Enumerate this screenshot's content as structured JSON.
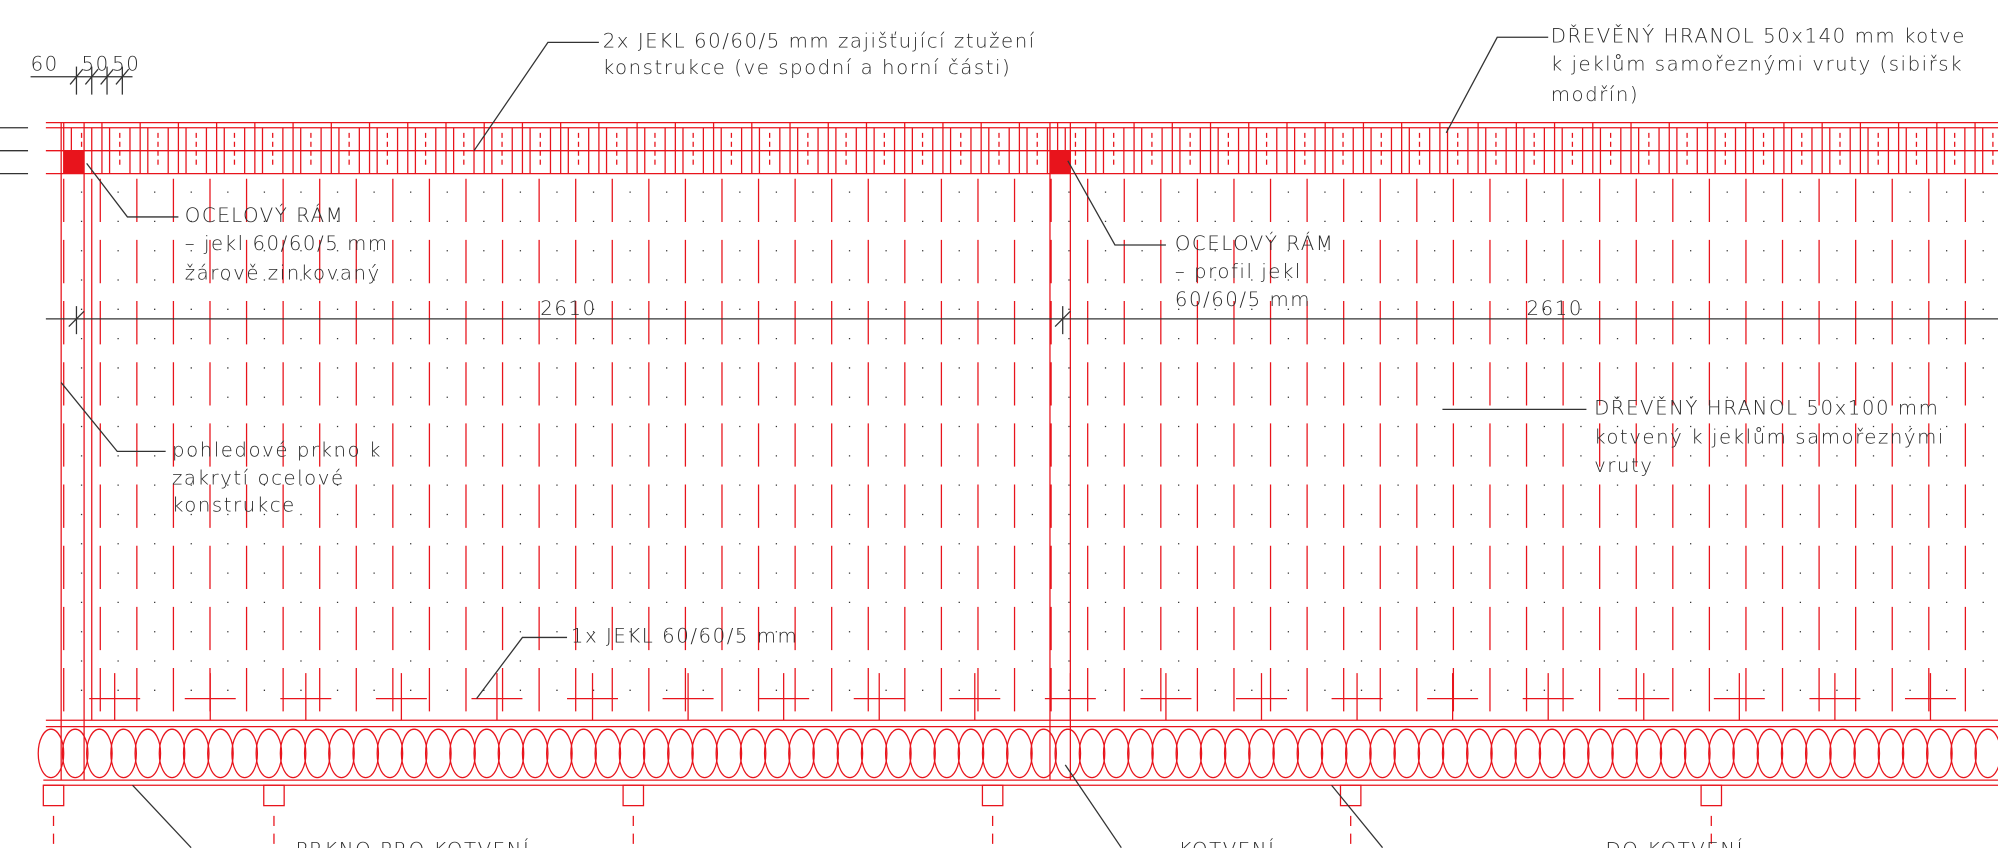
{
  "dimensions": {
    "top_left": [
      "60",
      "50",
      "50"
    ],
    "spans": [
      "2610",
      "2610"
    ]
  },
  "notes": [
    {
      "lines": [
        "2x JEKL 60/60/5 mm zajišťující ztužení",
        "konstrukce (ve spodní a horní části)"
      ]
    },
    {
      "lines": [
        "DŘEVĚNÝ HRANOL 50x140 mm kotve",
        "k jeklům samořeznými vruty (sibiřsk",
        "modřín)"
      ]
    },
    {
      "lines": [
        "OCELOVÝ RÁM",
        "– jekl 60/60/5 mm",
        "žárově zinkovaný"
      ]
    },
    {
      "lines": [
        "OCELOVÝ RÁM",
        "– profil jekl",
        "60/60/5 mm"
      ]
    },
    {
      "lines": [
        "DŘEVĚNÝ HRANOL 50x100 mm",
        "kotvený k jeklům samořeznými",
        "vruty"
      ]
    },
    {
      "lines": [
        "pohledové prkno k",
        "zakrytí ocelové",
        "konstrukce"
      ]
    },
    {
      "lines": [
        "1x JEKL 60/60/5 mm"
      ]
    },
    {
      "lines": [
        "PRKNO PRO KOTVENÍ"
      ]
    },
    {
      "lines": [
        "KOTVENÍ"
      ]
    },
    {
      "lines": [
        "DO KOTVENÍ"
      ]
    }
  ]
}
